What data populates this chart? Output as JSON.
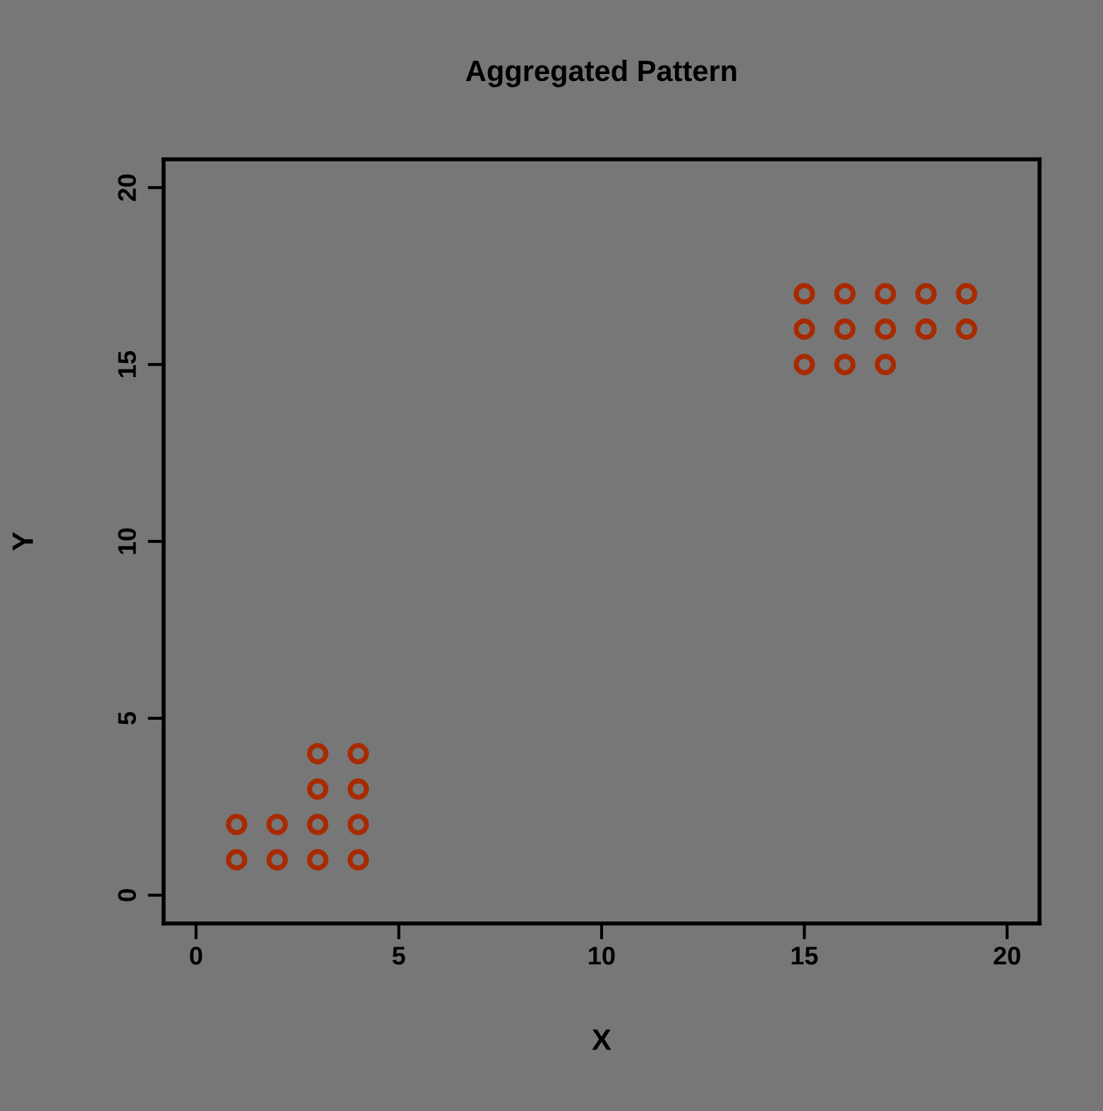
{
  "chart_data": {
    "type": "scatter",
    "title": "Aggregated Pattern",
    "xlabel": "X",
    "ylabel": "Y",
    "x": [
      1,
      1,
      2,
      2,
      3,
      3,
      3,
      3,
      4,
      4,
      4,
      4,
      15,
      15,
      15,
      16,
      16,
      16,
      17,
      17,
      17,
      18,
      18,
      19,
      19
    ],
    "series": [
      {
        "color": "#a82a00",
        "values": [
          1,
          2,
          1,
          2,
          1,
          2,
          3,
          4,
          1,
          2,
          3,
          4,
          15,
          16,
          17,
          15,
          16,
          17,
          15,
          16,
          17,
          16,
          17,
          16,
          17
        ]
      }
    ],
    "xlim": [
      -0.8,
      20.8
    ],
    "ylim": [
      -0.8,
      20.8
    ],
    "xticks": [
      0,
      5,
      10,
      15,
      20
    ],
    "yticks": [
      0,
      5,
      10,
      15,
      20
    ],
    "marker": "circle",
    "grid": false,
    "legend": false
  }
}
